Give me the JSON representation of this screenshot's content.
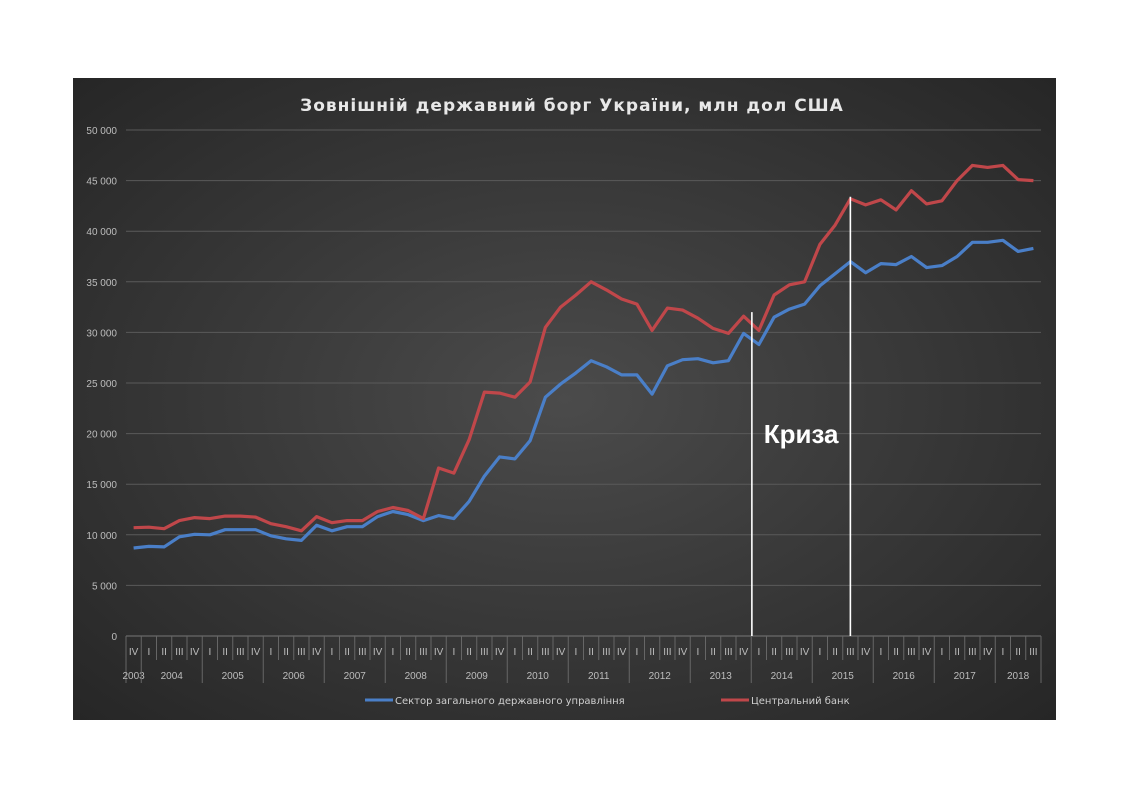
{
  "chart_data": {
    "type": "line",
    "title": "Зовнішній державний борг України, млн дол США",
    "xlabel": "",
    "ylabel": "",
    "ylim": [
      0,
      50000
    ],
    "yticks": [
      0,
      5000,
      10000,
      15000,
      20000,
      25000,
      30000,
      35000,
      40000,
      45000,
      50000
    ],
    "ytick_labels": [
      "0",
      "5 000",
      "10 000",
      "15 000",
      "20 000",
      "25 000",
      "30 000",
      "35 000",
      "40 000",
      "45 000",
      "50 000"
    ],
    "grid": true,
    "legend_position": "bottom",
    "years": [
      {
        "year": "2003",
        "quarters": [
          "IV"
        ]
      },
      {
        "year": "2004",
        "quarters": [
          "I",
          "II",
          "III",
          "IV"
        ]
      },
      {
        "year": "2005",
        "quarters": [
          "I",
          "II",
          "III",
          "IV"
        ]
      },
      {
        "year": "2006",
        "quarters": [
          "I",
          "II",
          "III",
          "IV"
        ]
      },
      {
        "year": "2007",
        "quarters": [
          "I",
          "II",
          "III",
          "IV"
        ]
      },
      {
        "year": "2008",
        "quarters": [
          "I",
          "II",
          "III",
          "IV"
        ]
      },
      {
        "year": "2009",
        "quarters": [
          "I",
          "II",
          "III",
          "IV"
        ]
      },
      {
        "year": "2010",
        "quarters": [
          "I",
          "II",
          "III",
          "IV"
        ]
      },
      {
        "year": "2011",
        "quarters": [
          "I",
          "II",
          "III",
          "IV"
        ]
      },
      {
        "year": "2012",
        "quarters": [
          "I",
          "II",
          "III",
          "IV"
        ]
      },
      {
        "year": "2013",
        "quarters": [
          "I",
          "II",
          "III",
          "IV"
        ]
      },
      {
        "year": "2014",
        "quarters": [
          "I",
          "II",
          "III",
          "IV"
        ]
      },
      {
        "year": "2015",
        "quarters": [
          "I",
          "II",
          "III",
          "IV"
        ]
      },
      {
        "year": "2016",
        "quarters": [
          "I",
          "II",
          "III",
          "IV"
        ]
      },
      {
        "year": "2017",
        "quarters": [
          "I",
          "II",
          "III",
          "IV"
        ]
      },
      {
        "year": "2018",
        "quarters": [
          "I",
          "II",
          "III"
        ]
      }
    ],
    "series": [
      {
        "name": "Сектор загального державного управління",
        "color": "#4a7fc8",
        "values": [
          8700,
          8850,
          8800,
          9800,
          10050,
          10000,
          10500,
          10500,
          10500,
          9900,
          9600,
          9450,
          10950,
          10400,
          10800,
          10800,
          11800,
          12300,
          12000,
          11400,
          11900,
          11600,
          13300,
          15800,
          17700,
          17500,
          19300,
          23600,
          24900,
          26000,
          27200,
          26600,
          25800,
          25800,
          23900,
          26700,
          27300,
          27400,
          27000,
          27200,
          29900,
          28800,
          31500,
          32300,
          32800,
          34600,
          35800,
          37000,
          35900,
          36800,
          36700,
          37500,
          36400,
          36600,
          37500,
          38900,
          38900,
          39100,
          38000,
          38300
        ]
      },
      {
        "name": "Центральний банк",
        "color": "#c0474a",
        "values": [
          10700,
          10750,
          10600,
          11400,
          11700,
          11600,
          11850,
          11850,
          11750,
          11100,
          10800,
          10400,
          11800,
          11200,
          11400,
          11400,
          12300,
          12700,
          12400,
          11600,
          16600,
          16100,
          19400,
          24100,
          24000,
          23600,
          25100,
          30500,
          32500,
          33700,
          35000,
          34200,
          33300,
          32800,
          30200,
          32400,
          32200,
          31400,
          30400,
          29900,
          31600,
          30200,
          33700,
          34700,
          35000,
          38700,
          40600,
          43200,
          42600,
          43100,
          42100,
          44000,
          42700,
          43000,
          45000,
          46500,
          46300,
          46500,
          45100,
          45000
        ]
      }
    ],
    "annotations": [
      {
        "text": "Криза",
        "from_index": 41,
        "to_index": 47,
        "line_tops": [
          32000,
          43400
        ]
      }
    ]
  }
}
